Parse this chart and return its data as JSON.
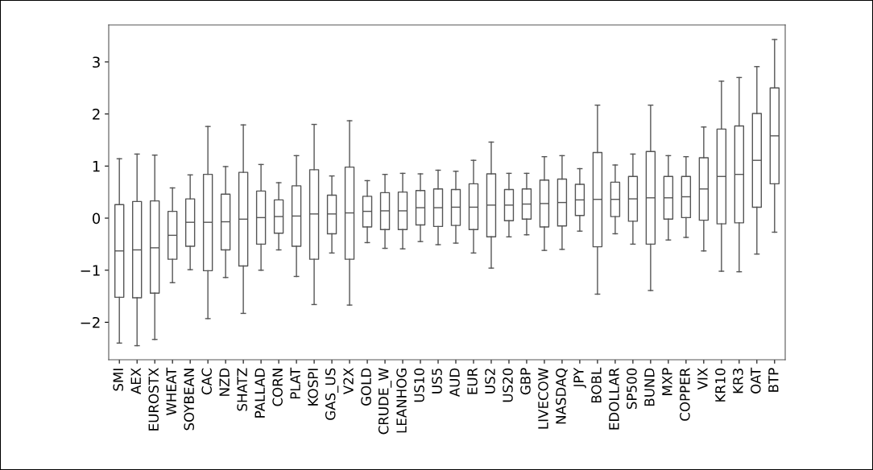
{
  "chart_data": {
    "type": "box",
    "categories": [
      "SMI",
      "AEX",
      "EUROSTX",
      "WHEAT",
      "SOYBEAN",
      "CAC",
      "NZD",
      "SHATZ",
      "PALLAD",
      "CORN",
      "PLAT",
      "KOSPI",
      "GAS_US",
      "V2X",
      "GOLD",
      "CRUDE_W",
      "LEANHOG",
      "US10",
      "US5",
      "AUD",
      "EUR",
      "US2",
      "US20",
      "GBP",
      "LIVECOW",
      "NASDAQ",
      "JPY",
      "BOBL",
      "EDOLLAR",
      "SP500",
      "BUND",
      "MXP",
      "COPPER",
      "VIX",
      "KR10",
      "KR3",
      "OAT",
      "BTP"
    ],
    "ylim": [
      -2.72,
      3.71
    ],
    "yticks": [
      {
        "value": -2,
        "label": "−2"
      },
      {
        "value": -1,
        "label": "−1"
      },
      0,
      1,
      2,
      3
    ],
    "series": [
      {
        "color": "#555555",
        "boxes": [
          {
            "low": -2.4,
            "q1": -1.52,
            "median": -0.63,
            "q3": 0.26,
            "high": 1.14
          },
          {
            "low": -2.45,
            "q1": -1.53,
            "median": -0.61,
            "q3": 0.32,
            "high": 1.23
          },
          {
            "low": -2.33,
            "q1": -1.44,
            "median": -0.57,
            "q3": 0.33,
            "high": 1.21
          },
          {
            "low": -1.24,
            "q1": -0.79,
            "median": -0.33,
            "q3": 0.13,
            "high": 0.58
          },
          {
            "low": -0.99,
            "q1": -0.54,
            "median": -0.08,
            "q3": 0.37,
            "high": 0.83
          },
          {
            "low": -1.93,
            "q1": -1.01,
            "median": -0.08,
            "q3": 0.84,
            "high": 1.76
          },
          {
            "low": -1.14,
            "q1": -0.61,
            "median": -0.07,
            "q3": 0.46,
            "high": 0.99
          },
          {
            "low": -1.83,
            "q1": -0.92,
            "median": -0.02,
            "q3": 0.88,
            "high": 1.79
          },
          {
            "low": -1.0,
            "q1": -0.5,
            "median": 0.01,
            "q3": 0.52,
            "high": 1.03
          },
          {
            "low": -0.61,
            "q1": -0.29,
            "median": 0.03,
            "q3": 0.35,
            "high": 0.68
          },
          {
            "low": -1.12,
            "q1": -0.54,
            "median": 0.04,
            "q3": 0.62,
            "high": 1.2
          },
          {
            "low": -1.66,
            "q1": -0.79,
            "median": 0.08,
            "q3": 0.93,
            "high": 1.8
          },
          {
            "low": -0.67,
            "q1": -0.3,
            "median": 0.08,
            "q3": 0.44,
            "high": 0.81
          },
          {
            "low": -1.67,
            "q1": -0.79,
            "median": 0.1,
            "q3": 0.98,
            "high": 1.87
          },
          {
            "low": -0.47,
            "q1": -0.17,
            "median": 0.13,
            "q3": 0.42,
            "high": 0.72
          },
          {
            "low": -0.58,
            "q1": -0.22,
            "median": 0.14,
            "q3": 0.49,
            "high": 0.84
          },
          {
            "low": -0.59,
            "q1": -0.22,
            "median": 0.14,
            "q3": 0.5,
            "high": 0.86
          },
          {
            "low": -0.45,
            "q1": -0.13,
            "median": 0.2,
            "q3": 0.53,
            "high": 0.85
          },
          {
            "low": -0.51,
            "q1": -0.16,
            "median": 0.2,
            "q3": 0.56,
            "high": 0.92
          },
          {
            "low": -0.48,
            "q1": -0.14,
            "median": 0.21,
            "q3": 0.55,
            "high": 0.9
          },
          {
            "low": -0.67,
            "q1": -0.22,
            "median": 0.21,
            "q3": 0.66,
            "high": 1.11
          },
          {
            "low": -0.96,
            "q1": -0.36,
            "median": 0.25,
            "q3": 0.85,
            "high": 1.46
          },
          {
            "low": -0.36,
            "q1": -0.05,
            "median": 0.25,
            "q3": 0.55,
            "high": 0.86
          },
          {
            "low": -0.32,
            "q1": -0.02,
            "median": 0.27,
            "q3": 0.56,
            "high": 0.86
          },
          {
            "low": -0.62,
            "q1": -0.17,
            "median": 0.28,
            "q3": 0.73,
            "high": 1.18
          },
          {
            "low": -0.6,
            "q1": -0.15,
            "median": 0.3,
            "q3": 0.75,
            "high": 1.2
          },
          {
            "low": -0.25,
            "q1": 0.05,
            "median": 0.35,
            "q3": 0.65,
            "high": 0.95
          },
          {
            "low": -1.46,
            "q1": -0.55,
            "median": 0.36,
            "q3": 1.26,
            "high": 2.17
          },
          {
            "low": -0.3,
            "q1": 0.03,
            "median": 0.36,
            "q3": 0.69,
            "high": 1.02
          },
          {
            "low": -0.5,
            "q1": -0.06,
            "median": 0.37,
            "q3": 0.8,
            "high": 1.23
          },
          {
            "low": -1.39,
            "q1": -0.5,
            "median": 0.39,
            "q3": 1.28,
            "high": 2.17
          },
          {
            "low": -0.42,
            "q1": -0.02,
            "median": 0.39,
            "q3": 0.8,
            "high": 1.2
          },
          {
            "low": -0.37,
            "q1": 0.01,
            "median": 0.41,
            "q3": 0.8,
            "high": 1.18
          },
          {
            "low": -0.63,
            "q1": -0.04,
            "median": 0.56,
            "q3": 1.16,
            "high": 1.75
          },
          {
            "low": -1.02,
            "q1": -0.11,
            "median": 0.8,
            "q3": 1.71,
            "high": 2.63
          },
          {
            "low": -1.03,
            "q1": -0.09,
            "median": 0.84,
            "q3": 1.77,
            "high": 2.7
          },
          {
            "low": -0.69,
            "q1": 0.21,
            "median": 1.11,
            "q3": 2.01,
            "high": 2.91
          },
          {
            "low": -0.27,
            "q1": 0.66,
            "median": 1.58,
            "q3": 2.5,
            "high": 3.43
          }
        ]
      }
    ]
  }
}
